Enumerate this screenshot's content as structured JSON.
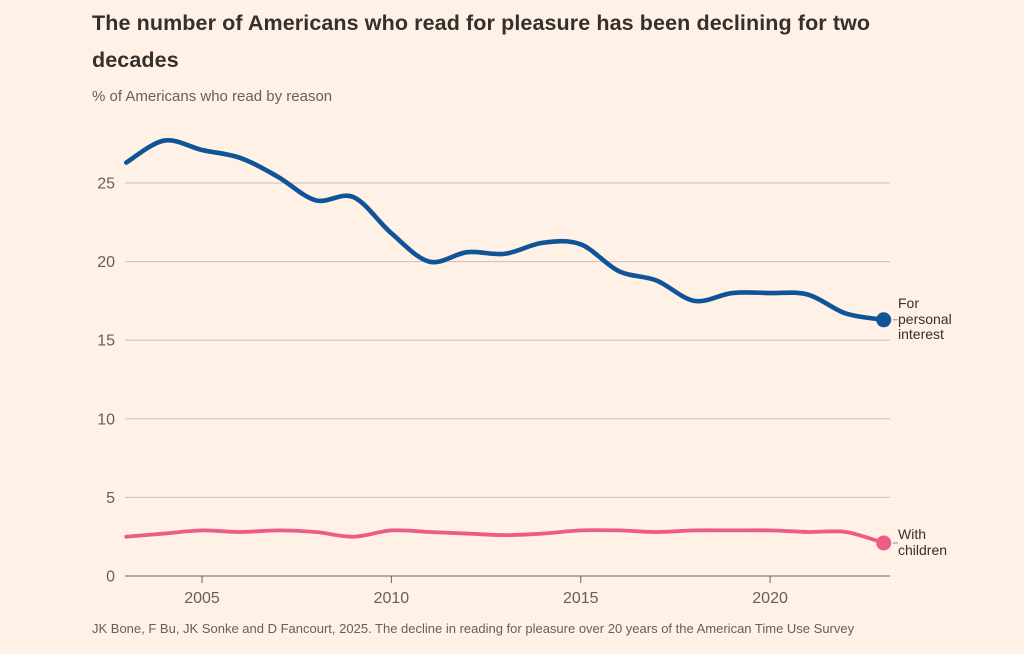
{
  "source": {
    "text": "JK Bone, F Bu, JK Sonke and D Fancourt, 2025. The decline in reading for pleasure over 20 years of the American Time Use Survey"
  },
  "colors": {
    "background": "#fff1e5",
    "title_text": "#33302e",
    "muted_text": "#66605c",
    "gridline": "#ccc0b6",
    "axis": "#66605c",
    "series_personal_interest": "#0f5499",
    "series_with_children": "#ed5c87"
  },
  "chart_data": {
    "type": "line",
    "title": "The number of Americans who read for pleasure has been declining for two decades",
    "subtitle": "% of Americans who read by reason",
    "xlabel": "",
    "ylabel": "% of Americans who read by reason",
    "x": [
      2003,
      2004,
      2005,
      2006,
      2007,
      2008,
      2009,
      2010,
      2011,
      2012,
      2013,
      2014,
      2015,
      2016,
      2017,
      2018,
      2019,
      2020,
      2021,
      2022,
      2023
    ],
    "series": [
      {
        "name": "For personal interest",
        "color_key": "series_personal_interest",
        "values": [
          26.3,
          27.7,
          27.1,
          26.6,
          25.4,
          23.9,
          24.1,
          21.8,
          20.0,
          20.6,
          20.5,
          21.2,
          21.1,
          19.4,
          18.8,
          17.5,
          18.0,
          18.0,
          17.9,
          16.7,
          16.3
        ]
      },
      {
        "name": "With children",
        "color_key": "series_with_children",
        "values": [
          2.5,
          2.7,
          2.9,
          2.8,
          2.9,
          2.8,
          2.5,
          2.9,
          2.8,
          2.7,
          2.6,
          2.7,
          2.9,
          2.9,
          2.8,
          2.9,
          2.9,
          2.9,
          2.8,
          2.8,
          2.1
        ]
      }
    ],
    "xticks": [
      2005,
      2010,
      2015,
      2020
    ],
    "yticks": [
      0,
      5,
      10,
      15,
      20,
      25
    ],
    "xlim": [
      2003,
      2023.3
    ],
    "ylim": [
      0,
      28.5
    ],
    "grid": "horizontal",
    "legend_position": "right-of-line-end"
  }
}
